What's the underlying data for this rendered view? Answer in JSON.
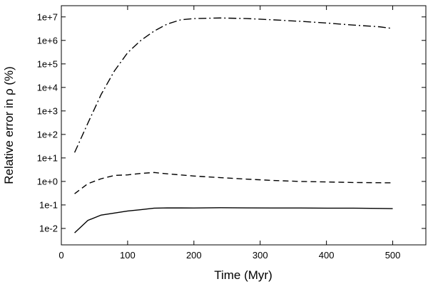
{
  "chart_data": {
    "type": "line",
    "xlabel": "Time (Myr)",
    "ylabel": "Relative error in ρ (%)",
    "xlim": [
      0,
      550
    ],
    "ylim": [
      0.002,
      30000000
    ],
    "yscale": "log",
    "x_ticks": [
      0,
      100,
      200,
      300,
      400,
      500
    ],
    "y_ticks": [
      {
        "value": 0.01,
        "label": "1e-2"
      },
      {
        "value": 0.1,
        "label": "1e-1"
      },
      {
        "value": 1,
        "label": "1e+0"
      },
      {
        "value": 10,
        "label": "1e+1"
      },
      {
        "value": 100,
        "label": "1e+2"
      },
      {
        "value": 1000,
        "label": "1e+3"
      },
      {
        "value": 10000,
        "label": "1e+4"
      },
      {
        "value": 100000,
        "label": "1e+5"
      },
      {
        "value": 1000000,
        "label": "1e+6"
      },
      {
        "value": 10000000,
        "label": "1e+7"
      }
    ],
    "grid": false,
    "legend": "none",
    "series": [
      {
        "style": "dash-dot",
        "color": "#000000",
        "points": [
          [
            20,
            17
          ],
          [
            40,
            300
          ],
          [
            60,
            5000
          ],
          [
            80,
            50000
          ],
          [
            100,
            300000
          ],
          [
            120,
            1000000
          ],
          [
            140,
            2500000
          ],
          [
            160,
            5000000
          ],
          [
            180,
            7500000
          ],
          [
            200,
            8500000
          ],
          [
            240,
            9000000
          ],
          [
            280,
            8500000
          ],
          [
            320,
            7500000
          ],
          [
            360,
            6500000
          ],
          [
            400,
            5500000
          ],
          [
            440,
            4500000
          ],
          [
            480,
            3800000
          ],
          [
            500,
            3200000
          ]
        ]
      },
      {
        "style": "dashed",
        "color": "#000000",
        "points": [
          [
            20,
            0.3
          ],
          [
            40,
            0.8
          ],
          [
            60,
            1.3
          ],
          [
            80,
            1.8
          ],
          [
            100,
            1.9
          ],
          [
            120,
            2.2
          ],
          [
            140,
            2.4
          ],
          [
            160,
            2.1
          ],
          [
            200,
            1.7
          ],
          [
            240,
            1.45
          ],
          [
            280,
            1.25
          ],
          [
            320,
            1.1
          ],
          [
            360,
            1.0
          ],
          [
            400,
            0.95
          ],
          [
            440,
            0.9
          ],
          [
            480,
            0.88
          ],
          [
            500,
            0.87
          ]
        ]
      },
      {
        "style": "solid",
        "color": "#000000",
        "points": [
          [
            20,
            0.0065
          ],
          [
            40,
            0.022
          ],
          [
            60,
            0.037
          ],
          [
            80,
            0.045
          ],
          [
            100,
            0.055
          ],
          [
            120,
            0.063
          ],
          [
            140,
            0.073
          ],
          [
            160,
            0.075
          ],
          [
            200,
            0.074
          ],
          [
            240,
            0.076
          ],
          [
            280,
            0.075
          ],
          [
            320,
            0.074
          ],
          [
            360,
            0.074
          ],
          [
            400,
            0.073
          ],
          [
            440,
            0.073
          ],
          [
            480,
            0.071
          ],
          [
            500,
            0.07
          ]
        ]
      }
    ]
  }
}
